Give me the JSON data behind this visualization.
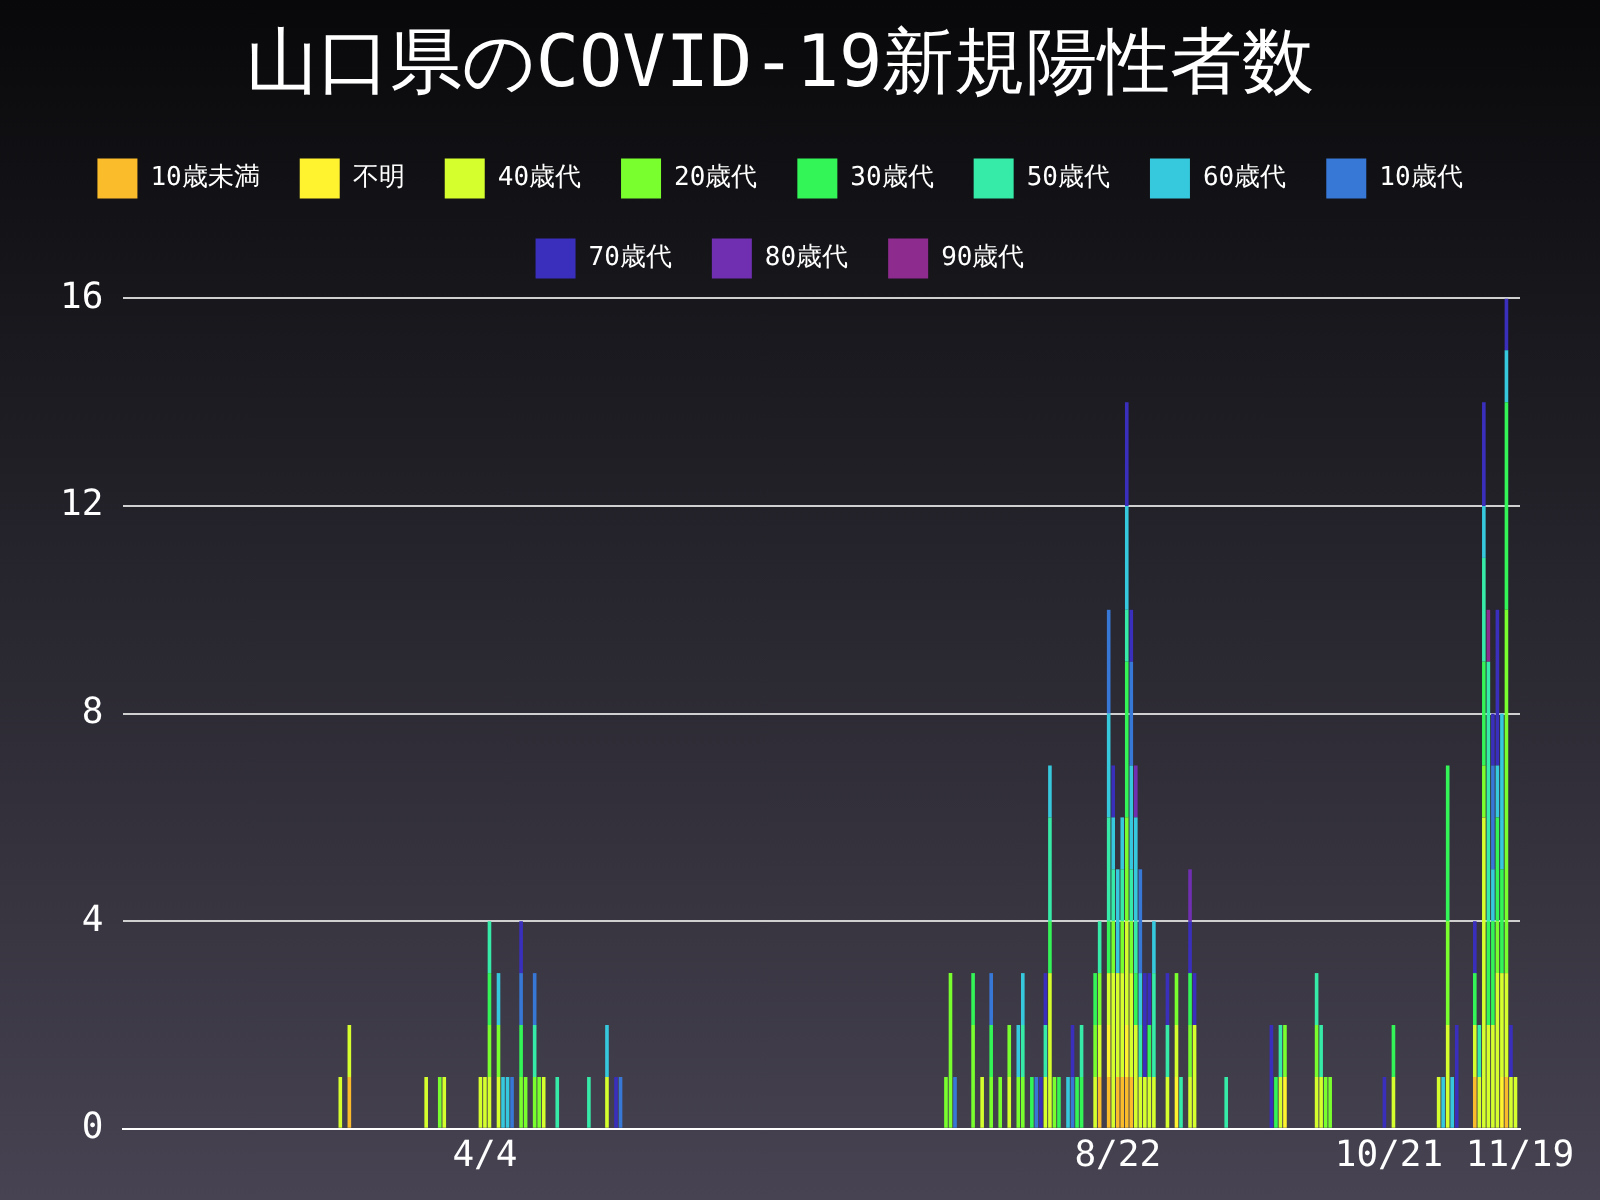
{
  "chart_data": {
    "type": "bar",
    "title": "山口県のCOVID-19新規陽性者数",
    "stacked": true,
    "legend": "top",
    "grid": "y",
    "xlim": [
      "--01-15",
      "--11-19"
    ],
    "xticks": [
      {
        "value": "--04-04",
        "label": "4/4"
      },
      {
        "value": "--08-22",
        "label": "8/22"
      },
      {
        "value": "--10-21",
        "label": "10/21"
      },
      {
        "value": "--11-19",
        "label": "11/19"
      }
    ],
    "ylim": [
      0,
      16
    ],
    "yticks": [
      0,
      4,
      8,
      12,
      16
    ],
    "x": [
      "--03-03",
      "--03-05",
      "--03-22",
      "--03-25",
      "--03-26",
      "--04-03",
      "--04-04",
      "--04-05",
      "--04-07",
      "--04-08",
      "--04-09",
      "--04-10",
      "--04-12",
      "--04-13",
      "--04-15",
      "--04-16",
      "--04-17",
      "--04-20",
      "--04-27",
      "--05-01",
      "--05-03",
      "--05-04",
      "--07-15",
      "--07-16",
      "--07-17",
      "--07-21",
      "--07-23",
      "--07-25",
      "--07-27",
      "--07-29",
      "--07-31",
      "--08-01",
      "--08-03",
      "--08-04",
      "--08-05",
      "--08-06",
      "--08-07",
      "--08-08",
      "--08-09",
      "--08-11",
      "--08-12",
      "--08-13",
      "--08-14",
      "--08-17",
      "--08-18",
      "--08-20",
      "--08-21",
      "--08-22",
      "--08-23",
      "--08-24",
      "--08-25",
      "--08-26",
      "--08-27",
      "--08-28",
      "--08-29",
      "--08-30",
      "--09-02",
      "--09-04",
      "--09-05",
      "--09-07",
      "--09-08",
      "--09-15",
      "--09-25",
      "--09-26",
      "--09-27",
      "--09-28",
      "--10-05",
      "--10-06",
      "--10-07",
      "--10-08",
      "--10-20",
      "--10-22",
      "--11-01",
      "--11-02",
      "--11-03",
      "--11-04",
      "--11-05",
      "--11-09",
      "--11-10",
      "--11-11",
      "--11-12",
      "--11-13",
      "--11-14",
      "--11-15",
      "--11-16",
      "--11-17",
      "--11-18"
    ],
    "series": [
      {
        "name": "10歳未満",
        "color": "#fbbc2c",
        "values": [
          0,
          1,
          0,
          0,
          0,
          0,
          0,
          0,
          0,
          0,
          0,
          0,
          0,
          0,
          0,
          0,
          0,
          0,
          0,
          0,
          0,
          0,
          0,
          0,
          0,
          0,
          0,
          0,
          0,
          0,
          0,
          0,
          0,
          0,
          0,
          0,
          0,
          0,
          0,
          0,
          0,
          0,
          0,
          0,
          1,
          1,
          0,
          1,
          1,
          1,
          1,
          0,
          0,
          0,
          0,
          0,
          0,
          0,
          0,
          0,
          0,
          0,
          0,
          0,
          0,
          0,
          0,
          0,
          0,
          0,
          0,
          0,
          0,
          0,
          0,
          0,
          0,
          1,
          0,
          0,
          0,
          0,
          0,
          0,
          1,
          0,
          0
        ]
      },
      {
        "name": "不明",
        "color": "#fff22e",
        "values": [
          0,
          0,
          0,
          0,
          0,
          0,
          0,
          0,
          0,
          0,
          0,
          0,
          0,
          0,
          0,
          0,
          0,
          0,
          0,
          0,
          0,
          0,
          0,
          0,
          0,
          0,
          0,
          0,
          0,
          0,
          0,
          0,
          0,
          0,
          0,
          0,
          0,
          0,
          0,
          0,
          0,
          0,
          0,
          0,
          0,
          1,
          0,
          0,
          0,
          1,
          0,
          0,
          0,
          0,
          0,
          0,
          0,
          1,
          0,
          0,
          0,
          0,
          0,
          0,
          0,
          1,
          0,
          0,
          0,
          0,
          0,
          0,
          0,
          0,
          0,
          0,
          0,
          0,
          0,
          0,
          0,
          0,
          0,
          1,
          0,
          0,
          0
        ]
      },
      {
        "name": "40歳代",
        "color": "#d6ff2e",
        "values": [
          1,
          1,
          1,
          0,
          1,
          1,
          1,
          1,
          1,
          0,
          0,
          0,
          0,
          0,
          0,
          0,
          1,
          0,
          0,
          1,
          0,
          0,
          0,
          0,
          0,
          0,
          1,
          0,
          0,
          1,
          0,
          0,
          0,
          0,
          0,
          1,
          3,
          0,
          0,
          0,
          0,
          0,
          0,
          1,
          1,
          1,
          3,
          2,
          2,
          2,
          2,
          2,
          1,
          1,
          1,
          1,
          1,
          1,
          0,
          1,
          2,
          0,
          0,
          0,
          1,
          0,
          1,
          1,
          0,
          0,
          0,
          1,
          1,
          0,
          2,
          0,
          0,
          1,
          1,
          6,
          2,
          2,
          3,
          2,
          2,
          1,
          1
        ]
      },
      {
        "name": "20歳代",
        "color": "#7aff2e",
        "values": [
          0,
          0,
          0,
          1,
          0,
          0,
          0,
          1,
          1,
          0,
          0,
          0,
          1,
          1,
          1,
          1,
          0,
          0,
          0,
          0,
          0,
          0,
          1,
          3,
          0,
          2,
          0,
          1,
          1,
          1,
          1,
          1,
          0,
          0,
          0,
          0,
          0,
          1,
          0,
          0,
          0,
          0,
          0,
          1,
          1,
          0,
          1,
          0,
          1,
          2,
          1,
          0,
          0,
          0,
          0,
          0,
          0,
          1,
          0,
          1,
          0,
          0,
          0,
          0,
          0,
          1,
          1,
          0,
          1,
          1,
          0,
          0,
          0,
          0,
          2,
          0,
          0,
          0,
          0,
          1,
          0,
          0,
          1,
          0,
          7,
          0,
          0
        ]
      },
      {
        "name": "30歳代",
        "color": "#34f558",
        "values": [
          0,
          0,
          0,
          0,
          0,
          0,
          0,
          1,
          0,
          0,
          0,
          0,
          1,
          0,
          0,
          0,
          0,
          0,
          0,
          0,
          0,
          0,
          0,
          0,
          0,
          1,
          0,
          1,
          0,
          0,
          0,
          0,
          1,
          0,
          0,
          0,
          1,
          0,
          1,
          0,
          0,
          1,
          1,
          1,
          0,
          1,
          0,
          0,
          0,
          3,
          0,
          1,
          0,
          0,
          1,
          0,
          0,
          0,
          0,
          1,
          0,
          0,
          0,
          1,
          0,
          0,
          0,
          0,
          0,
          0,
          0,
          1,
          0,
          0,
          3,
          0,
          0,
          1,
          0,
          2,
          2,
          2,
          2,
          2,
          4,
          0,
          0
        ]
      },
      {
        "name": "50歳代",
        "color": "#36eba8",
        "values": [
          0,
          0,
          0,
          0,
          0,
          0,
          0,
          1,
          0,
          0,
          0,
          0,
          0,
          0,
          1,
          0,
          0,
          1,
          1,
          0,
          0,
          0,
          0,
          0,
          0,
          0,
          0,
          0,
          0,
          0,
          0,
          1,
          0,
          0,
          0,
          1,
          2,
          0,
          0,
          0,
          0,
          0,
          1,
          0,
          1,
          2,
          1,
          0,
          1,
          1,
          1,
          1,
          1,
          0,
          0,
          2,
          1,
          0,
          1,
          0,
          0,
          1,
          0,
          0,
          1,
          0,
          1,
          1,
          0,
          0,
          0,
          0,
          0,
          0,
          0,
          0,
          0,
          0,
          1,
          2,
          5,
          0,
          0,
          0,
          0,
          0,
          0
        ]
      },
      {
        "name": "60歳代",
        "color": "#36c8dc",
        "values": [
          0,
          0,
          0,
          0,
          0,
          0,
          0,
          0,
          1,
          1,
          1,
          0,
          0,
          0,
          0,
          0,
          0,
          0,
          0,
          1,
          0,
          0,
          0,
          0,
          0,
          0,
          0,
          0,
          0,
          0,
          1,
          1,
          0,
          0,
          0,
          0,
          1,
          0,
          0,
          1,
          0,
          0,
          0,
          0,
          0,
          2,
          1,
          2,
          1,
          2,
          2,
          2,
          1,
          0,
          0,
          1,
          0,
          0,
          0,
          0,
          0,
          0,
          0,
          0,
          0,
          0,
          0,
          0,
          0,
          0,
          0,
          0,
          0,
          1,
          0,
          1,
          0,
          0,
          0,
          1,
          0,
          1,
          1,
          3,
          1,
          0,
          0
        ]
      },
      {
        "name": "10歳代",
        "color": "#3777d6",
        "values": [
          0,
          0,
          0,
          0,
          0,
          0,
          0,
          0,
          0,
          0,
          0,
          1,
          1,
          0,
          1,
          0,
          0,
          0,
          0,
          0,
          0,
          1,
          0,
          0,
          1,
          0,
          0,
          1,
          0,
          0,
          0,
          0,
          0,
          1,
          0,
          0,
          0,
          0,
          0,
          0,
          1,
          0,
          0,
          0,
          0,
          2,
          0,
          0,
          0,
          0,
          2,
          0,
          2,
          0,
          0,
          0,
          0,
          0,
          0,
          0,
          0,
          0,
          0,
          0,
          0,
          0,
          0,
          0,
          0,
          0,
          0,
          0,
          0,
          0,
          0,
          0,
          0,
          0,
          0,
          0,
          0,
          2,
          0,
          0,
          0,
          0,
          0
        ]
      },
      {
        "name": "70歳代",
        "color": "#3a2fbd",
        "values": [
          0,
          0,
          0,
          0,
          0,
          0,
          0,
          0,
          0,
          0,
          0,
          0,
          1,
          0,
          0,
          0,
          0,
          0,
          0,
          0,
          1,
          0,
          0,
          0,
          0,
          0,
          0,
          0,
          0,
          0,
          0,
          0,
          0,
          0,
          1,
          1,
          0,
          0,
          0,
          0,
          1,
          0,
          0,
          0,
          0,
          0,
          1,
          0,
          0,
          2,
          1,
          0,
          0,
          2,
          1,
          0,
          1,
          0,
          0,
          1,
          1,
          0,
          2,
          0,
          0,
          0,
          0,
          0,
          0,
          0,
          1,
          0,
          0,
          0,
          0,
          0,
          2,
          1,
          0,
          2,
          0,
          1,
          3,
          0,
          1,
          1,
          0
        ]
      },
      {
        "name": "80歳代",
        "color": "#6f2fb0",
        "values": [
          0,
          0,
          0,
          0,
          0,
          0,
          0,
          0,
          0,
          0,
          0,
          0,
          0,
          0,
          0,
          0,
          0,
          0,
          0,
          0,
          0,
          0,
          0,
          0,
          0,
          0,
          0,
          0,
          0,
          0,
          0,
          0,
          0,
          0,
          0,
          0,
          0,
          0,
          0,
          0,
          0,
          0,
          0,
          0,
          0,
          0,
          0,
          0,
          0,
          0,
          0,
          1,
          0,
          0,
          0,
          0,
          0,
          0,
          0,
          1,
          0,
          0,
          0,
          0,
          0,
          0,
          0,
          0,
          0,
          0,
          0,
          0,
          0,
          0,
          0,
          0,
          0,
          0,
          0,
          0,
          0,
          0,
          0,
          0,
          0,
          0,
          0
        ]
      },
      {
        "name": "90歳代",
        "color": "#8e2b8e",
        "values": [
          0,
          0,
          0,
          0,
          0,
          0,
          0,
          0,
          0,
          0,
          0,
          0,
          0,
          0,
          0,
          0,
          0,
          0,
          0,
          0,
          0,
          0,
          0,
          0,
          0,
          0,
          0,
          0,
          0,
          0,
          0,
          0,
          0,
          0,
          0,
          0,
          0,
          0,
          0,
          0,
          0,
          0,
          0,
          0,
          0,
          0,
          0,
          0,
          0,
          0,
          0,
          0,
          0,
          0,
          0,
          0,
          0,
          0,
          0,
          0,
          0,
          0,
          0,
          0,
          0,
          0,
          0,
          0,
          0,
          0,
          0,
          0,
          0,
          0,
          0,
          0,
          0,
          0,
          0,
          0,
          1,
          0,
          0,
          0,
          0,
          0,
          0
        ]
      }
    ]
  }
}
